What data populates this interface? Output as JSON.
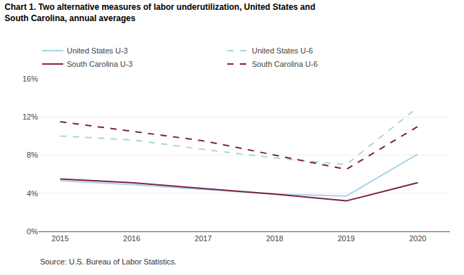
{
  "chart_data": {
    "type": "line",
    "title": "Chart 1. Two alternative measures of labor underutilization, United States and",
    "subtitle": "South Carolina, annual averages",
    "x": [
      2015,
      2016,
      2017,
      2018,
      2019,
      2020
    ],
    "series": [
      {
        "name": "United States U-3",
        "color": "#a8d4e8",
        "line_style": "solid",
        "values": [
          5.3,
          4.9,
          4.4,
          3.9,
          3.7,
          8.1
        ]
      },
      {
        "name": "United States U-6",
        "color": "#a8d4e8",
        "line_style": "dashed",
        "values": [
          10.0,
          9.6,
          8.6,
          7.7,
          7.0,
          13.0
        ]
      },
      {
        "name": "South Carolina U-3",
        "color": "#7B2346",
        "line_style": "solid",
        "values": [
          5.5,
          5.1,
          4.5,
          3.9,
          3.2,
          5.1
        ]
      },
      {
        "name": "South Carolina U-6",
        "color": "#7B2346",
        "line_style": "dashed",
        "values": [
          11.5,
          10.5,
          9.5,
          8.0,
          6.5,
          11.0
        ]
      }
    ],
    "xlim": [
      2014.7,
      2020.45
    ],
    "xticks": [
      2015,
      2016,
      2017,
      2018,
      2019,
      2020
    ],
    "ylim": [
      0,
      16
    ],
    "yticks": [
      {
        "value": 0,
        "label": "0%"
      },
      {
        "value": 4,
        "label": "4%"
      },
      {
        "value": 8,
        "label": "8%"
      },
      {
        "value": 12,
        "label": "12%"
      },
      {
        "value": 16,
        "label": "16%"
      }
    ],
    "grid": true,
    "legend": "top left",
    "annotations": [
      "Source: U.S. Bureau of Labor Statistics."
    ]
  }
}
